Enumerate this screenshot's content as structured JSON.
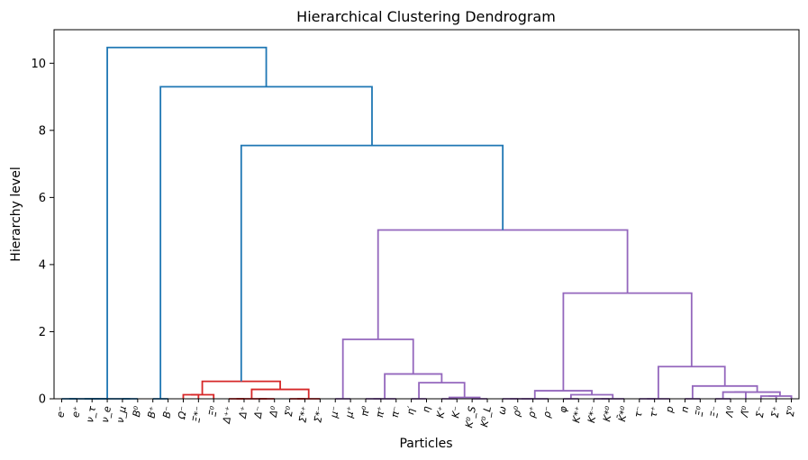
{
  "chart_data": {
    "type": "dendrogram",
    "title": "Hierarchical Clustering Dendrogram",
    "xlabel": "Particles",
    "ylabel": "Hierarchy level",
    "ylim": [
      0,
      11
    ],
    "yticks": [
      0,
      2,
      4,
      6,
      8,
      10
    ],
    "leaves": [
      "e⁻",
      "e⁺",
      "ν_τ",
      "ν_e",
      "ν_μ",
      "B⁰",
      "B⁺",
      "B⁻",
      "Ω⁻",
      "Ξ*⁻",
      "Ξ⁰",
      "Δ⁺⁺",
      "Δ⁺",
      "Δ⁻",
      "Δ⁰",
      "Σ⁰",
      "Σ*⁺",
      "Σ*⁻",
      "μ⁻",
      "μ⁺",
      "π⁰",
      "π⁺",
      "π⁻",
      "η′",
      "η",
      "K⁺",
      "K⁻",
      "K⁰_S",
      "K⁰_L",
      "ω",
      "ρ⁰",
      "ρ⁺",
      "ρ⁻",
      "φ",
      "K*⁺",
      "K*⁻",
      "K*⁰",
      "K̄*⁰",
      "τ⁻",
      "τ⁺",
      "p",
      "n",
      "Ξ⁰",
      "Ξ⁻",
      "Λ⁰",
      "Λ̄⁰",
      "Σ⁻",
      "Σ⁺",
      "Σ⁰"
    ],
    "colors": {
      "C0": "#1f77b4",
      "C1": "#d62728",
      "C2": "#9467bd"
    },
    "links": [
      {
        "id": "n0",
        "a": "L0",
        "b": "L1",
        "h": 0,
        "c": "C0"
      },
      {
        "id": "n1",
        "a": "L2",
        "b": "L3",
        "h": 0,
        "c": "C0"
      },
      {
        "id": "n2",
        "a": "L4",
        "b": "L5",
        "h": 0,
        "c": "C0"
      },
      {
        "id": "n3",
        "a": "n0",
        "b": "n1",
        "h": 0,
        "c": "C0"
      },
      {
        "id": "n4",
        "a": "n3",
        "b": "n2",
        "h": 0,
        "c": "C0"
      },
      {
        "id": "n5",
        "a": "L6",
        "b": "L7",
        "h": 0,
        "c": "C0"
      },
      {
        "id": "n6",
        "a": "L8",
        "b": "L9",
        "h": 0.12,
        "c": "C1"
      },
      {
        "id": "n7",
        "a": "n6",
        "b": "L10",
        "h": 0.12,
        "c": "C1"
      },
      {
        "id": "n8",
        "a": "L11",
        "b": "L12",
        "h": 0,
        "c": "C1"
      },
      {
        "id": "n9",
        "a": "L13",
        "b": "L14",
        "h": 0,
        "c": "C1"
      },
      {
        "id": "n10",
        "a": "n8",
        "b": "n9",
        "h": 0,
        "c": "C1"
      },
      {
        "id": "n11",
        "a": "L15",
        "b": "L16",
        "h": 0,
        "c": "C1"
      },
      {
        "id": "n12",
        "a": "n11",
        "b": "L17",
        "h": 0,
        "c": "C1"
      },
      {
        "id": "n13",
        "a": "n10",
        "b": "n12",
        "h": 0.28,
        "c": "C1"
      },
      {
        "id": "n14",
        "a": "n7",
        "b": "n13",
        "h": 0.52,
        "c": "C1"
      },
      {
        "id": "n15",
        "a": "L18",
        "b": "L19",
        "h": 0,
        "c": "C2"
      },
      {
        "id": "n16",
        "a": "L20",
        "b": "L21",
        "h": 0,
        "c": "C2"
      },
      {
        "id": "n17",
        "a": "n16",
        "b": "L22",
        "h": 0,
        "c": "C2"
      },
      {
        "id": "n18",
        "a": "L25",
        "b": "L26",
        "h": 0,
        "c": "C2"
      },
      {
        "id": "n19",
        "a": "L27",
        "b": "L28",
        "h": 0,
        "c": "C2"
      },
      {
        "id": "n20",
        "a": "n18",
        "b": "n19",
        "h": 0.04,
        "c": "C2"
      },
      {
        "id": "n21",
        "a": "L23",
        "b": "L24",
        "h": 0,
        "c": "C2"
      },
      {
        "id": "n22",
        "a": "n21",
        "b": "n20",
        "h": 0.48,
        "c": "C2"
      },
      {
        "id": "n23",
        "a": "n17",
        "b": "n22",
        "h": 0.74,
        "c": "C2"
      },
      {
        "id": "n24",
        "a": "n15",
        "b": "n23",
        "h": 1.77,
        "c": "C2"
      },
      {
        "id": "n25",
        "a": "L29",
        "b": "L30",
        "h": 0,
        "c": "C2"
      },
      {
        "id": "n26",
        "a": "n25",
        "b": "L31",
        "h": 0,
        "c": "C2"
      },
      {
        "id": "n27",
        "a": "n26",
        "b": "L32",
        "h": 0,
        "c": "C2"
      },
      {
        "id": "n28",
        "a": "L33",
        "b": "L34",
        "h": 0,
        "c": "C2"
      },
      {
        "id": "n29",
        "a": "L35",
        "b": "L36",
        "h": 0,
        "c": "C2"
      },
      {
        "id": "n30",
        "a": "n29",
        "b": "L37",
        "h": 0,
        "c": "C2"
      },
      {
        "id": "n31",
        "a": "n28",
        "b": "n30",
        "h": 0.12,
        "c": "C2"
      },
      {
        "id": "n32",
        "a": "n27",
        "b": "n31",
        "h": 0.24,
        "c": "C2"
      },
      {
        "id": "n33",
        "a": "L38",
        "b": "L39",
        "h": 0,
        "c": "C2"
      },
      {
        "id": "n34",
        "a": "n33",
        "b": "L40",
        "h": 0,
        "c": "C2"
      },
      {
        "id": "n35",
        "a": "L41",
        "b": "L42",
        "h": 0,
        "c": "C2"
      },
      {
        "id": "n36",
        "a": "L43",
        "b": "L44",
        "h": 0,
        "c": "C2"
      },
      {
        "id": "n37",
        "a": "n36",
        "b": "L45",
        "h": 0.2,
        "c": "C2"
      },
      {
        "id": "n38",
        "a": "L46",
        "b": "L47",
        "h": 0.08,
        "c": "C2"
      },
      {
        "id": "n39",
        "a": "n38",
        "b": "L48",
        "h": 0.08,
        "c": "C2"
      },
      {
        "id": "n40",
        "a": "n37",
        "b": "n39",
        "h": 0.2,
        "c": "C2"
      },
      {
        "id": "n41",
        "a": "n35",
        "b": "n40",
        "h": 0.38,
        "c": "C2"
      },
      {
        "id": "n42",
        "a": "n34",
        "b": "n41",
        "h": 0.96,
        "c": "C2"
      },
      {
        "id": "n43",
        "a": "n32",
        "b": "n42",
        "h": 3.15,
        "c": "C2"
      },
      {
        "id": "n44",
        "a": "n24",
        "b": "n43",
        "h": 5.03,
        "c": "C2"
      },
      {
        "id": "n45",
        "a": "n14",
        "b": "n44",
        "h": 7.55,
        "c": "C0"
      },
      {
        "id": "n46",
        "a": "n5",
        "b": "n45",
        "h": 9.3,
        "c": "C0"
      },
      {
        "id": "n47",
        "a": "n4",
        "b": "n46",
        "h": 10.47,
        "c": "C0"
      }
    ]
  }
}
